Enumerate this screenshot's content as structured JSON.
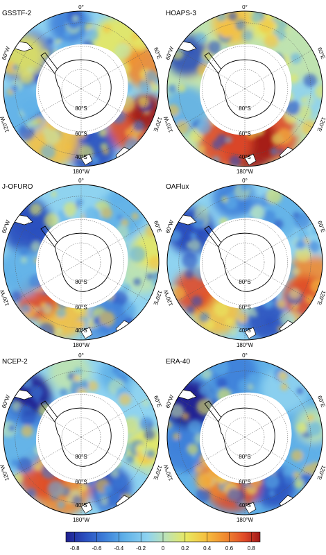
{
  "panels": [
    {
      "title": "GSSTF-2"
    },
    {
      "title": "HOAPS-3"
    },
    {
      "title": "J-OFURO"
    },
    {
      "title": "OAFlux"
    },
    {
      "title": "NCEP-2"
    },
    {
      "title": "ERA-40"
    }
  ],
  "graticule_labels": {
    "top": "0°",
    "bottom": "180°W",
    "left_upper": "60°W",
    "right_upper": "60°E",
    "left_lower": "120°W",
    "right_lower": "120°E",
    "lat_inner": "80°S",
    "lat_mid": "60°S",
    "lat_outer": "40°S"
  },
  "colorbar": {
    "ticks": [
      "-0.8",
      "-0.6",
      "-0.4",
      "-0.2",
      "0",
      "0.2",
      "0.4",
      "0.6",
      "0.8"
    ],
    "colors": [
      "#1f1f8f",
      "#2a4fbf",
      "#3d7fd9",
      "#5fb0e8",
      "#8fd3f0",
      "#bfe3b0",
      "#e8e860",
      "#f5c040",
      "#f08a30",
      "#e04a28",
      "#a01818"
    ]
  }
}
